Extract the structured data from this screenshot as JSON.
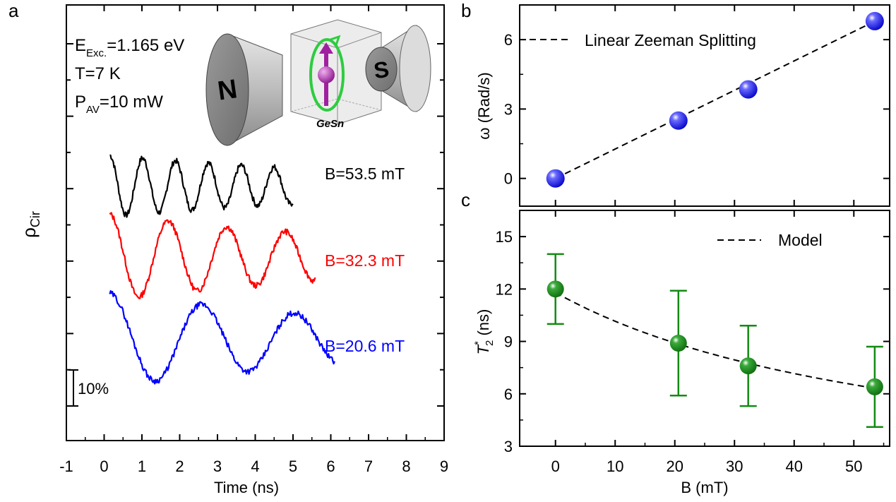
{
  "panels": {
    "a": "a",
    "b": "b",
    "c": "c"
  },
  "conditions": {
    "e_exc": {
      "main": "E",
      "sub": "Exc.",
      "rest": "=1.165 eV"
    },
    "temp": "T=7 K",
    "power": {
      "main": "P",
      "sub": "AV",
      "rest": "=10 mW"
    }
  },
  "illustration": {
    "north_label": "N",
    "south_label": "S",
    "sample_label": "GeSn",
    "colors": {
      "spin": "#a020a0",
      "precession": "#2ecc40",
      "magnet": "#b4b4b4"
    }
  },
  "scale_bar": {
    "label": "10%",
    "value_percent": 10
  },
  "chart_data": [
    {
      "panel": "a",
      "type": "line",
      "xlabel": "Time (ns)",
      "ylabel": {
        "main": "ρ",
        "sub": "Cir"
      },
      "xlim": [
        -1,
        9
      ],
      "xticks": [
        -1,
        0,
        1,
        2,
        3,
        4,
        5,
        6,
        7,
        8,
        9
      ],
      "ytick_labels": "none",
      "series": [
        {
          "name": "B=53.5 mT",
          "color": "#000000",
          "field_mT": 53.5,
          "offset": 0,
          "t_start": 0.15,
          "t_end": 5.0,
          "period_ns": 0.87,
          "amplitude_percent": 8.5,
          "decay_ns": 9.0
        },
        {
          "name": "B=32.3 mT",
          "color": "#ff0000",
          "field_mT": 32.3,
          "offset": -20,
          "t_start": 0.15,
          "t_end": 5.6,
          "period_ns": 1.55,
          "amplitude_percent": 12,
          "decay_ns": 9.0
        },
        {
          "name": "B=20.6 mT",
          "color": "#0000ff",
          "field_mT": 20.6,
          "offset": -43,
          "t_start": 0.15,
          "t_end": 6.1,
          "period_ns": 2.45,
          "amplitude_percent": 13,
          "decay_ns": 9.0
        }
      ]
    },
    {
      "panel": "b",
      "type": "scatter",
      "xlabel": "",
      "ylabel": "ω (Rad/s)",
      "xlim": [
        -6,
        56
      ],
      "ylim": [
        -1.2,
        7.5
      ],
      "yticks": [
        0,
        3,
        6
      ],
      "points": [
        {
          "x": 0,
          "y": 0
        },
        {
          "x": 20.6,
          "y": 2.5
        },
        {
          "x": 32.3,
          "y": 3.85
        },
        {
          "x": 53.5,
          "y": 6.8
        }
      ],
      "marker_color": "#1f1fff",
      "fit": {
        "name": "Linear Zeeman Splitting",
        "slope": 0.127,
        "intercept": 0,
        "x_range": [
          0,
          53.5
        ]
      }
    },
    {
      "panel": "c",
      "type": "scatter",
      "xlabel": "B (mT)",
      "ylabel": {
        "main": "T",
        "sup": "*",
        "sub": "2",
        "rest": " (ns)"
      },
      "xlim": [
        -6,
        56
      ],
      "ylim": [
        3,
        16.5
      ],
      "xticks": [
        0,
        10,
        20,
        30,
        40,
        50
      ],
      "yticks": [
        3,
        6,
        9,
        12,
        15
      ],
      "points": [
        {
          "x": 0,
          "y": 12.0,
          "err_low": 10.0,
          "err_high": 14.0
        },
        {
          "x": 20.6,
          "y": 8.9,
          "err_low": 5.9,
          "err_high": 11.9
        },
        {
          "x": 32.3,
          "y": 7.6,
          "err_low": 5.3,
          "err_high": 9.9
        },
        {
          "x": 53.5,
          "y": 6.4,
          "err_low": 4.1,
          "err_high": 8.7
        }
      ],
      "marker_color": "#138a13",
      "fit": {
        "name": "Model",
        "t0": 11.8,
        "k": 0.0162,
        "x_range": [
          0,
          53.5
        ]
      }
    }
  ]
}
